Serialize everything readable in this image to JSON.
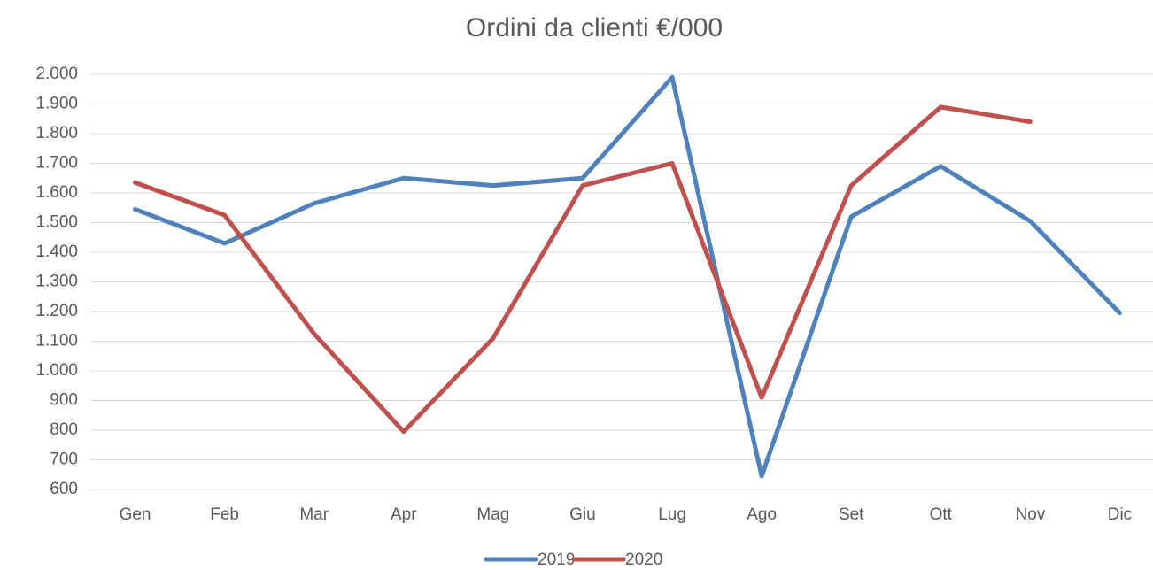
{
  "chart_data": {
    "type": "line",
    "title": "Ordini da clienti €/000",
    "categories": [
      "Gen",
      "Feb",
      "Mar",
      "Apr",
      "Mag",
      "Giu",
      "Lug",
      "Ago",
      "Set",
      "Ott",
      "Nov",
      "Dic"
    ],
    "series": [
      {
        "name": "2019",
        "color": "#4f81bd",
        "values": [
          1545,
          1430,
          1565,
          1650,
          1625,
          1650,
          1990,
          645,
          1520,
          1690,
          1505,
          1195
        ]
      },
      {
        "name": "2020",
        "color": "#c0504d",
        "values": [
          1635,
          1525,
          1125,
          795,
          1110,
          1625,
          1700,
          910,
          1625,
          1890,
          1840,
          null
        ]
      }
    ],
    "ylim": [
      600,
      2000
    ],
    "yticks": [
      600,
      700,
      800,
      900,
      {
        "value": 1000,
        "label": "1.000"
      },
      {
        "value": 1100,
        "label": "1.100"
      },
      {
        "value": 1200,
        "label": "1.200"
      },
      {
        "value": 1300,
        "label": "1.300"
      },
      {
        "value": 1400,
        "label": "1.400"
      },
      {
        "value": 1500,
        "label": "1.500"
      },
      {
        "value": 1600,
        "label": "1.600"
      },
      {
        "value": 1700,
        "label": "1.700"
      },
      {
        "value": 1800,
        "label": "1.800"
      },
      {
        "value": 1900,
        "label": "1.900"
      },
      {
        "value": 2000,
        "label": "2.000"
      }
    ],
    "grid": true,
    "legend": "bottom"
  }
}
